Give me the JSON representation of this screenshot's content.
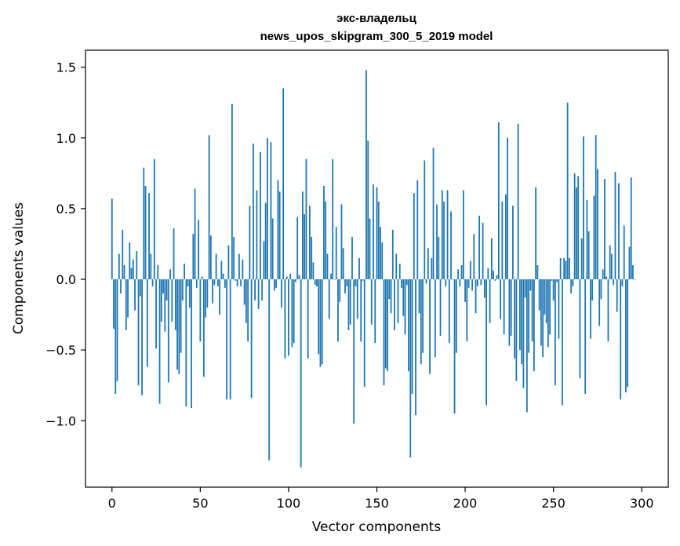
{
  "chart_data": {
    "type": "bar",
    "title": "экс-владельц",
    "subtitle": "news_upos_skipgram_300_5_2019 model",
    "xlabel": "Vector components",
    "ylabel": "Components values",
    "xlim": [
      -15,
      315
    ],
    "ylim": [
      -1.47,
      1.62
    ],
    "xticks": [
      0,
      50,
      100,
      150,
      200,
      250,
      300
    ],
    "xtick_labels": [
      "0",
      "50",
      "100",
      "150",
      "200",
      "250",
      "300"
    ],
    "yticks": [
      -1.0,
      -0.5,
      0.0,
      0.5,
      1.0,
      1.5
    ],
    "ytick_labels": [
      "−1.0",
      "−0.5",
      "0.0",
      "0.5",
      "1.0",
      "1.5"
    ],
    "grid": false,
    "bar_color": "#1f77b4",
    "x": "0..299 (index of each value)",
    "values": [
      0.57,
      -0.35,
      -0.81,
      -0.72,
      0.18,
      -0.1,
      0.35,
      0.1,
      -0.36,
      -0.27,
      0.26,
      0.08,
      0.14,
      -0.22,
      0.2,
      -0.75,
      -0.12,
      -0.82,
      0.79,
      0.66,
      -0.62,
      0.61,
      0.18,
      -0.05,
      0.85,
      -0.49,
      0.1,
      -0.88,
      -0.3,
      -0.1,
      -0.37,
      -0.15,
      -0.73,
      0.07,
      -0.3,
      0.36,
      -0.36,
      -0.64,
      -0.67,
      -0.52,
      -0.15,
      0.11,
      -0.9,
      -0.05,
      -0.2,
      -0.91,
      0.32,
      0.64,
      -0.06,
      0.42,
      -0.44,
      0.02,
      -0.69,
      -0.27,
      -0.2,
      1.02,
      0.31,
      -0.17,
      -0.04,
      0.18,
      -0.05,
      -0.25,
      0.13,
      0.04,
      -0.06,
      -0.85,
      0.24,
      -0.85,
      1.24,
      0.3,
      -0.01,
      -0.05,
      0.18,
      -0.05,
      0.14,
      -0.18,
      -0.31,
      -0.44,
      0.52,
      -0.84,
      0.96,
      -0.15,
      0.63,
      -0.21,
      0.9,
      -0.15,
      0.27,
      0.54,
      1.0,
      -1.28,
      0.97,
      0.43,
      -0.08,
      -0.06,
      0.7,
      0.62,
      -0.2,
      1.35,
      -0.56,
      0.02,
      -0.54,
      0.04,
      -0.48,
      -0.45,
      -0.02,
      0.44,
      0.03,
      -1.33,
      0.62,
      0.46,
      0.85,
      -0.56,
      0.52,
      0.3,
      0.12,
      -0.04,
      -0.05,
      -0.53,
      -0.62,
      -0.6,
      0.66,
      0.55,
      0.18,
      -0.28,
      0.04,
      0.85,
      0.0,
      0.37,
      -0.44,
      -0.16,
      0.53,
      0.22,
      -0.1,
      -0.05,
      -0.36,
      -0.32,
      0.3,
      -1.02,
      -0.05,
      -0.28,
      0.15,
      -0.44,
      -0.01,
      -0.76,
      1.48,
      0.98,
      0.43,
      -0.32,
      0.67,
      -0.45,
      0.65,
      0.55,
      0.37,
      0.26,
      -0.75,
      -0.63,
      -0.65,
      -0.14,
      -0.24,
      0.35,
      -0.36,
      0.18,
      -0.31,
      0.11,
      -0.06,
      -0.26,
      -0.39,
      -0.04,
      -0.65,
      -1.26,
      -0.81,
      0.61,
      -0.96,
      0.7,
      -0.24,
      -0.6,
      -0.52,
      0.84,
      -0.03,
      0.22,
      -0.67,
      0.15,
      0.93,
      -0.55,
      0.53,
      0.3,
      -0.4,
      0.63,
      0.55,
      -0.05,
      0.63,
      -0.45,
      0.48,
      0.0,
      -0.95,
      -0.52,
      0.07,
      -0.05,
      0.1,
      0.63,
      -0.16,
      -0.44,
      -0.06,
      0.13,
      -0.08,
      0.32,
      -0.24,
      -0.05,
      0.45,
      -0.04,
      0.4,
      -0.13,
      -0.89,
      0.08,
      -0.31,
      0.29,
      0.06,
      -0.01,
      0.03,
      1.11,
      -0.28,
      0.55,
      -0.39,
      0.6,
      1.0,
      -0.47,
      -0.4,
      0.52,
      -0.56,
      -0.72,
      1.1,
      -0.5,
      -0.6,
      -0.77,
      -0.13,
      -0.94,
      -0.52,
      -0.08,
      -0.44,
      -0.65,
      0.65,
      0.1,
      -0.22,
      -0.47,
      -0.55,
      -0.25,
      -0.31,
      -0.48,
      -0.39,
      -0.01,
      -0.15,
      -0.75,
      -0.02,
      -0.42,
      0.15,
      -0.89,
      0.15,
      0.13,
      1.25,
      0.15,
      -0.1,
      -0.05,
      0.75,
      0.65,
      0.73,
      -0.7,
      0.29,
      1.01,
      -0.81,
      0.56,
      0.34,
      -0.42,
      -0.15,
      0.59,
      1.02,
      0.78,
      -0.33,
      -0.14,
      0.07,
      0.71,
      0.02,
      -0.44,
      0.24,
      0.18,
      -0.04,
      0.76,
      -0.23,
      0.68,
      -0.85,
      -0.05,
      0.38,
      -0.8,
      -0.76,
      0.23,
      0.72,
      0.1,
      0.0
    ]
  }
}
